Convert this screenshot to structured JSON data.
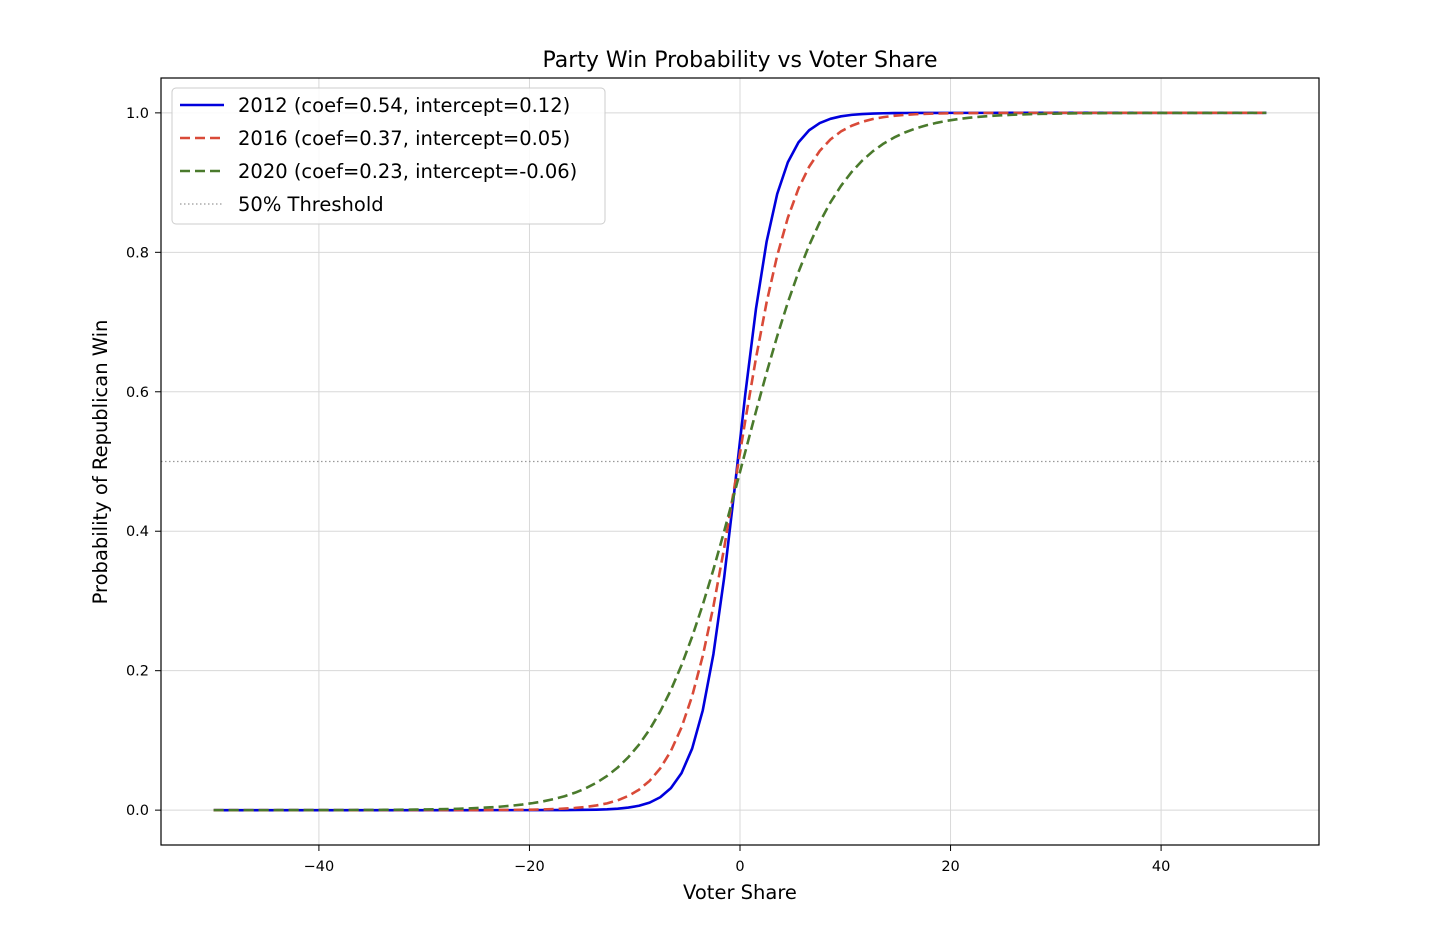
{
  "chart_data": {
    "type": "line",
    "title": "Party Win Probability vs Voter Share",
    "xlabel": "Voter Share",
    "ylabel": "Probability of Republican Win",
    "xlim": [
      -55,
      55
    ],
    "ylim": [
      -0.05,
      1.05
    ],
    "xticks": [
      -40,
      -20,
      0,
      20,
      40
    ],
    "xtick_labels": [
      "−40",
      "−20",
      "0",
      "20",
      "40"
    ],
    "yticks": [
      0.0,
      0.2,
      0.4,
      0.6,
      0.8,
      1.0
    ],
    "ytick_labels": [
      "0.0",
      "0.2",
      "0.4",
      "0.6",
      "0.8",
      "1.0"
    ],
    "grid": true,
    "legend_position": "upper-left",
    "x_range": [
      -50,
      50
    ],
    "series": [
      {
        "name": "2012 (coef=0.54, intercept=0.12)",
        "coef": 0.54,
        "intercept": 0.12,
        "color": "#0000dd",
        "style": "solid"
      },
      {
        "name": "2016 (coef=0.37, intercept=0.05)",
        "coef": 0.37,
        "intercept": 0.05,
        "color": "#d94a38",
        "style": "dashed"
      },
      {
        "name": "2020 (coef=0.23, intercept=-0.06)",
        "coef": 0.23,
        "intercept": -0.06,
        "color": "#4a7a2c",
        "style": "dashed"
      }
    ],
    "reference_lines": [
      {
        "name": "50% Threshold",
        "y": 0.5,
        "color": "#999999",
        "style": "dotted"
      }
    ]
  }
}
